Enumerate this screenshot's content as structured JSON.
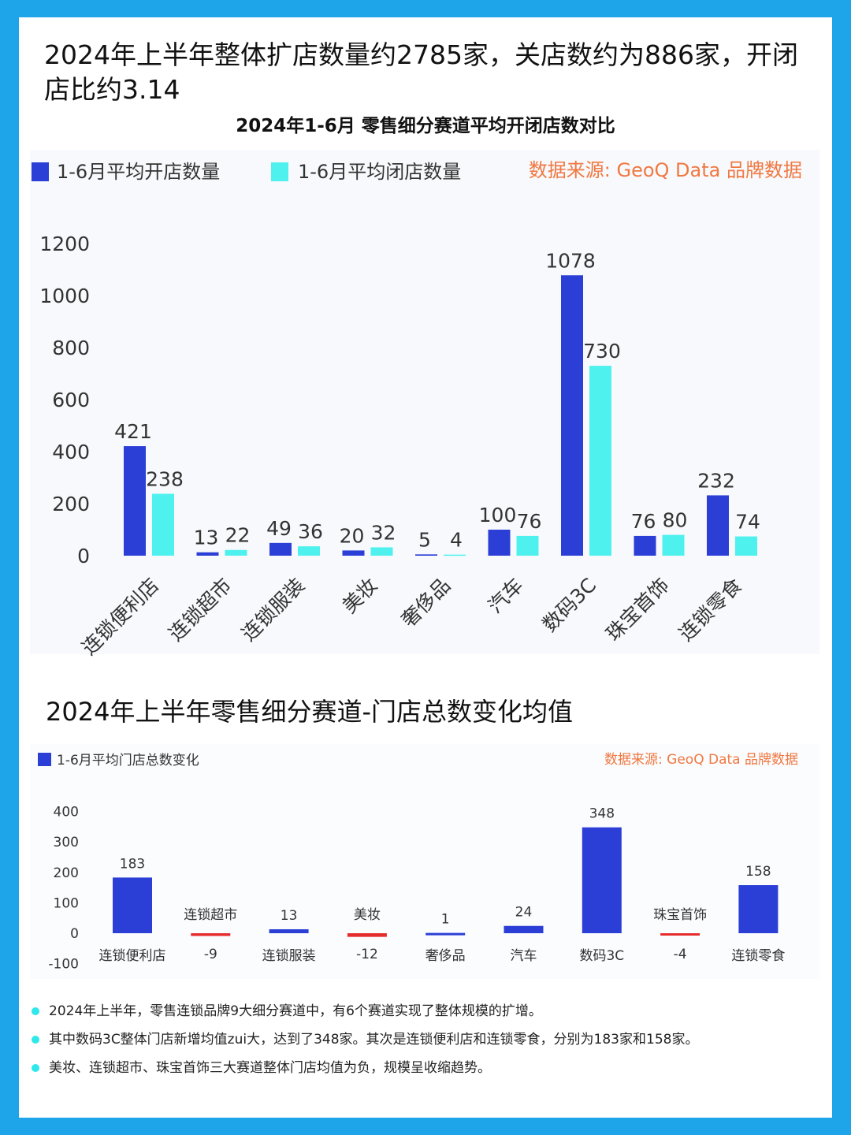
{
  "headline": "2024年上半年整体扩店数量约2785家，关店数约为886家，开闭店比约3.14",
  "colors": {
    "open": "#2b3ed6",
    "close": "#4ef1ee",
    "negative": "#e52d2d",
    "source": "#f07841",
    "bullet": "#2ee8ea"
  },
  "chart1": {
    "title": "2024年1-6月 零售细分赛道平均开闭店数对比",
    "source": "数据来源: GeoQ Data 品牌数据"
  },
  "section2_title": "2024年上半年零售细分赛道-门店总数变化均值",
  "chart2": {
    "source": "数据来源: GeoQ Data 品牌数据"
  },
  "notes": [
    "2024年上半年，零售连锁品牌9大细分赛道中，有6个赛道实现了整体规模的扩增。",
    "其中数码3C整体门店新增均值zui大，达到了348家。其次是连锁便利店和连锁零食，分别为183家和158家。",
    "美妆、连锁超市、珠宝首饰三大赛道整体门店均值为负，规模呈收缩趋势。"
  ],
  "chart_data": [
    {
      "type": "bar",
      "title": "2024年1-6月 零售细分赛道平均开闭店数对比",
      "categories": [
        "连锁便利店",
        "连锁超市",
        "连锁服装",
        "美妆",
        "奢侈品",
        "汽车",
        "数码3C",
        "珠宝首饰",
        "连锁零食"
      ],
      "series": [
        {
          "name": "1-6月平均开店数量",
          "values": [
            421,
            13,
            49,
            20,
            5,
            100,
            1078,
            76,
            232
          ]
        },
        {
          "name": "1-6月平均闭店数量",
          "values": [
            238,
            22,
            36,
            32,
            4,
            76,
            730,
            80,
            74
          ]
        }
      ],
      "yticks": [
        0,
        200,
        400,
        600,
        800,
        1000,
        1200
      ],
      "ylim": [
        0,
        1200
      ],
      "legend": "top-left",
      "grid": false
    },
    {
      "type": "bar",
      "categories": [
        "连锁便利店",
        "连锁超市",
        "连锁服装",
        "美妆",
        "奢侈品",
        "汽车",
        "数码3C",
        "珠宝首饰",
        "连锁零食"
      ],
      "series": [
        {
          "name": "1-6月平均门店总数变化",
          "values": [
            183,
            -9,
            13,
            -12,
            1,
            24,
            348,
            -4,
            158
          ]
        }
      ],
      "yticks": [
        -100,
        0,
        100,
        200,
        300,
        400
      ],
      "ylim": [
        -100,
        400
      ],
      "legend": "top-left",
      "grid": false
    }
  ]
}
